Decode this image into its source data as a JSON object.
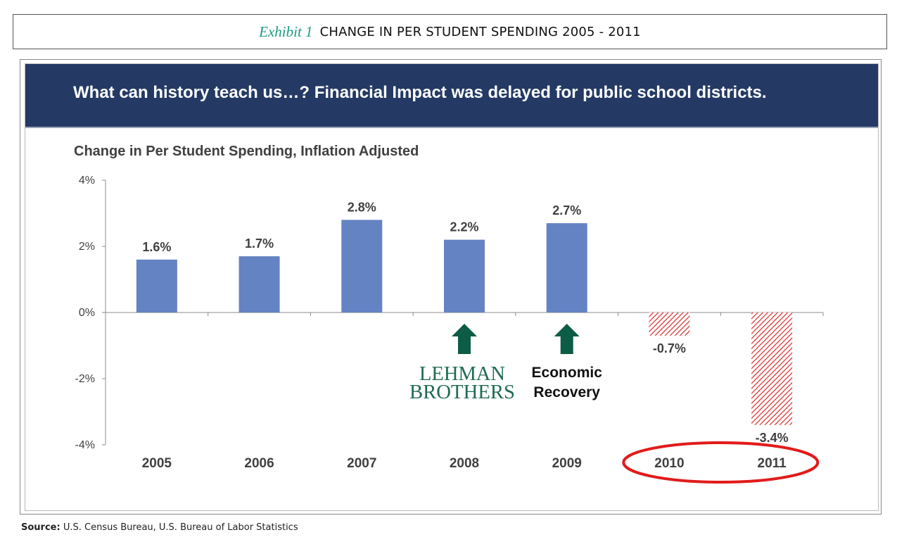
{
  "exhibit": {
    "label": "Exhibit 1",
    "title": "CHANGE IN PER STUDENT SPENDING 2005 - 2011"
  },
  "banner": {
    "text": "What can history teach us…? Financial Impact was delayed for public school districts."
  },
  "chart_data": {
    "type": "bar",
    "title": "Change in Per Student Spending, Inflation Adjusted",
    "xlabel": "",
    "ylabel": "",
    "categories": [
      "2005",
      "2006",
      "2007",
      "2008",
      "2009",
      "2010",
      "2011"
    ],
    "values": [
      1.6,
      1.7,
      2.8,
      2.2,
      2.7,
      -0.7,
      -3.4
    ],
    "data_labels": [
      "1.6%",
      "1.7%",
      "2.8%",
      "2.2%",
      "2.7%",
      "-0.7%",
      "-3.4%"
    ],
    "ylim": [
      -4,
      4
    ],
    "yticks": [
      4,
      2,
      0,
      -2,
      -4
    ],
    "ytick_labels": [
      "4%",
      "2%",
      "0%",
      "-2%",
      "-4%"
    ],
    "grid": false,
    "legend": "none",
    "colors": {
      "positive": "#6483c3",
      "negative_hatch": "#d92a2a",
      "arrow": "#0d5c45",
      "circle": "#e11b1b"
    },
    "annotations": [
      {
        "category": "2008",
        "arrow": "up",
        "text": "LEHMAN BROTHERS",
        "style": "logo"
      },
      {
        "category": "2009",
        "arrow": "up",
        "text": "Economic Recovery"
      }
    ],
    "highlight": {
      "categories": [
        "2010",
        "2011"
      ],
      "shape": "ellipse"
    }
  },
  "source": {
    "label": "Source:",
    "text": "U.S. Census Bureau, U.S. Bureau of Labor Statistics"
  }
}
